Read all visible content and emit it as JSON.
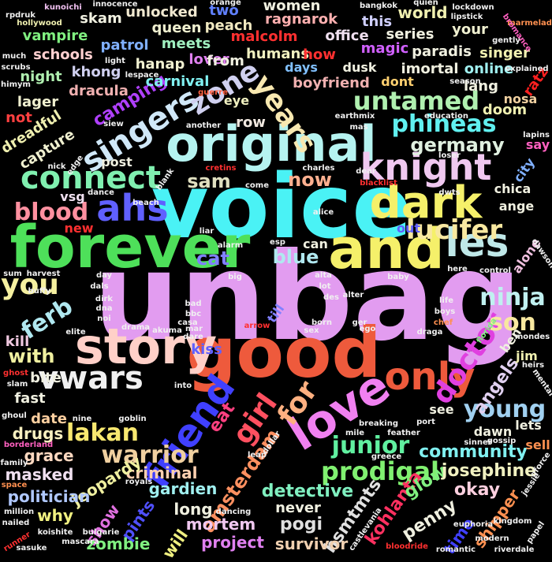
{
  "words": [
    {
      "t": "unbag",
      "c": "#e29cf0"
    },
    {
      "t": "voice",
      "c": "#4af2f5"
    },
    {
      "t": "good",
      "c": "#ee5a3c"
    },
    {
      "t": "forever",
      "c": "#4ee05a"
    },
    {
      "t": "original",
      "c": "#b5f3f0"
    },
    {
      "t": "and",
      "c": "#f5f06a"
    },
    {
      "t": "story",
      "c": "#ffd0c8"
    },
    {
      "t": "dark",
      "c": "#f5f06a"
    },
    {
      "t": "ahs",
      "c": "#6060ff"
    },
    {
      "t": "les",
      "c": "#bfe8e8"
    },
    {
      "t": "love",
      "c": "#f080f0"
    },
    {
      "t": "friend",
      "c": "#4040ff"
    },
    {
      "t": "only",
      "c": "#ee5a3c"
    },
    {
      "t": "years",
      "c": "#f8e8b0"
    },
    {
      "t": "singers",
      "c": "#d0e8f8"
    },
    {
      "t": "knight",
      "c": "#f0c8f0"
    },
    {
      "t": "connect",
      "c": "#80f0b0"
    },
    {
      "t": "untamed",
      "c": "#b0f0b0"
    },
    {
      "t": "phineas",
      "c": "#60f0f0"
    },
    {
      "t": "zone",
      "c": "#d0d0f0"
    },
    {
      "t": "you",
      "c": "#f5f0a0"
    },
    {
      "t": "vwars",
      "c": "#f0f0f0"
    },
    {
      "t": "lucifer",
      "c": "#f8e8a0"
    },
    {
      "t": "blood",
      "c": "#ff90a0"
    },
    {
      "t": "girl",
      "c": "#ff5060"
    },
    {
      "t": "for",
      "c": "#ffb080"
    },
    {
      "t": "doctor",
      "c": "#e040e0"
    },
    {
      "t": "ninja",
      "c": "#c0f0f0"
    },
    {
      "t": "warrior",
      "c": "#f0d0a0"
    },
    {
      "t": "lakan",
      "c": "#f8e870"
    },
    {
      "t": "junior",
      "c": "#60f0a0"
    },
    {
      "t": "prodigal",
      "c": "#80f070"
    },
    {
      "t": "young",
      "c": "#a0d0f0"
    },
    {
      "t": "son",
      "c": "#f8e8a0"
    },
    {
      "t": "ferb",
      "c": "#b0e8f0"
    },
    {
      "t": "germany",
      "c": "#e0f0e0"
    },
    {
      "t": "sam",
      "c": "#e0e0c0"
    },
    {
      "t": "now",
      "c": "#ffb090"
    },
    {
      "t": "blue",
      "c": "#b0e8f0"
    },
    {
      "t": "cat",
      "c": "#8080ff"
    },
    {
      "t": "with",
      "c": "#f0f0a0"
    },
    {
      "t": "amsterdam",
      "c": "#ff9060"
    },
    {
      "t": "eat",
      "c": "#ff4080"
    },
    {
      "t": "kohlanta",
      "c": "#ff3060"
    },
    {
      "t": "hsmtmts",
      "c": "#e0e0e0"
    },
    {
      "t": "angels",
      "c": "#e0d0f0"
    },
    {
      "t": "pogi",
      "c": "#e0e0e0"
    },
    {
      "t": "community",
      "c": "#80f0f0"
    },
    {
      "t": "detective",
      "c": "#80f0c0"
    },
    {
      "t": "glow",
      "c": "#80f080"
    },
    {
      "t": "josephine",
      "c": "#f0f0c0"
    },
    {
      "t": "okay",
      "c": "#ffd0e0"
    },
    {
      "t": "penny",
      "c": "#f0f0e0"
    },
    {
      "t": "criminal",
      "c": "#ffd0b0"
    },
    {
      "t": "jeopardy",
      "c": "#f0f0a0"
    },
    {
      "t": "gardien",
      "c": "#a0f0f0"
    },
    {
      "t": "masked",
      "c": "#f0e0f0"
    },
    {
      "t": "politician",
      "c": "#b0c8ff"
    },
    {
      "t": "grace",
      "c": "#ffd8c0"
    },
    {
      "t": "drugs",
      "c": "#f8f0c0"
    },
    {
      "t": "long",
      "c": "#f0f0e0"
    },
    {
      "t": "mortem",
      "c": "#f0c8f0"
    },
    {
      "t": "pints",
      "c": "#5050ff"
    },
    {
      "t": "show",
      "c": "#e070e0"
    },
    {
      "t": "zombie",
      "c": "#80f080"
    },
    {
      "t": "project",
      "c": "#e080f0"
    },
    {
      "t": "survivor",
      "c": "#f0d0b0"
    },
    {
      "t": "never",
      "c": "#f0f0e0"
    },
    {
      "t": "will",
      "c": "#f0f080"
    },
    {
      "t": "why",
      "c": "#f0f080"
    },
    {
      "t": "shipper",
      "c": "#ff9050"
    },
    {
      "t": "time",
      "c": "#4040ff"
    },
    {
      "t": "kiss",
      "c": "#6060ff"
    },
    {
      "t": "date",
      "c": "#ffd0a0"
    },
    {
      "t": "fast",
      "c": "#f0f0e0"
    },
    {
      "t": "bite",
      "c": "#f0f0e0"
    },
    {
      "t": "kill",
      "c": "#f0c8e0"
    },
    {
      "t": "row",
      "c": "#f0e8e0"
    },
    {
      "t": "camping",
      "c": "#b040ff"
    },
    {
      "t": "dracula",
      "c": "#f0b0b0"
    },
    {
      "t": "carnival",
      "c": "#80f0f0"
    },
    {
      "t": "hanap",
      "c": "#f0f0d0"
    },
    {
      "t": "khong",
      "c": "#d0d0f0"
    },
    {
      "t": "lager",
      "c": "#f0f0d0"
    },
    {
      "t": "night",
      "c": "#b0f0b0"
    },
    {
      "t": "capture",
      "c": "#f0f0d0"
    },
    {
      "t": "dreadful",
      "c": "#f0f0b0"
    },
    {
      "t": "not",
      "c": "#ff4040"
    },
    {
      "t": "schools",
      "c": "#ffd0d0"
    },
    {
      "t": "vampire",
      "c": "#80f080"
    },
    {
      "t": "skam",
      "c": "#f0f0e0"
    },
    {
      "t": "unlocked",
      "c": "#f0e8d0"
    },
    {
      "t": "queen",
      "c": "#f0f0d0"
    },
    {
      "t": "patrol",
      "c": "#80b0ff"
    },
    {
      "t": "meets",
      "c": "#a0f0c0"
    },
    {
      "t": "lover",
      "c": "#e080f0"
    },
    {
      "t": "from",
      "c": "#f0f0e0"
    },
    {
      "t": "two",
      "c": "#6080ff"
    },
    {
      "t": "peach",
      "c": "#f0e8c0"
    },
    {
      "t": "malcolm",
      "c": "#ff3030"
    },
    {
      "t": "humans",
      "c": "#f0f0c0"
    },
    {
      "t": "women",
      "c": "#f0f0e0"
    },
    {
      "t": "ragnarok",
      "c": "#ffb0b0"
    },
    {
      "t": "office",
      "c": "#f0e0f0"
    },
    {
      "t": "this",
      "c": "#d0d0ff"
    },
    {
      "t": "how",
      "c": "#ff3030"
    },
    {
      "t": "magic",
      "c": "#d060ff"
    },
    {
      "t": "days",
      "c": "#80c0ff"
    },
    {
      "t": "dusk",
      "c": "#f0f0e0"
    },
    {
      "t": "boyfriend",
      "c": "#f0b0b0"
    },
    {
      "t": "dont",
      "c": "#ffd070"
    },
    {
      "t": "imortal",
      "c": "#f0f0e0"
    },
    {
      "t": "world",
      "c": "#f0f0b0"
    },
    {
      "t": "series",
      "c": "#f0f0e0"
    },
    {
      "t": "paradis",
      "c": "#f0f0e0"
    },
    {
      "t": "your",
      "c": "#f0f0d0"
    },
    {
      "t": "singer",
      "c": "#f0f0b0"
    },
    {
      "t": "online",
      "c": "#a0f0f0"
    },
    {
      "t": "lang",
      "c": "#f0f0e0"
    },
    {
      "t": "doom",
      "c": "#f0f0b0"
    },
    {
      "t": "nosa",
      "c": "#f0d0a0"
    },
    {
      "t": "ratz",
      "c": "#ff2020"
    },
    {
      "t": "say",
      "c": "#ff60c0"
    },
    {
      "t": "eye",
      "c": "#f0f0c0"
    },
    {
      "t": "post",
      "c": "#f0f0e0"
    },
    {
      "t": "vsg",
      "c": "#f0e0f0"
    },
    {
      "t": "new",
      "c": "#ff3030"
    },
    {
      "t": "out",
      "c": "#6060ff"
    },
    {
      "t": "can",
      "c": "#f0f0e0"
    },
    {
      "t": "chica",
      "c": "#f0f0e0"
    },
    {
      "t": "ange",
      "c": "#f0f0e0"
    },
    {
      "t": "city",
      "c": "#80b0ff"
    },
    {
      "t": "alone",
      "c": "#f0c0e0"
    },
    {
      "t": "see",
      "c": "#f0f0e0"
    },
    {
      "t": "ben",
      "c": "#f0f0e0"
    },
    {
      "t": "jim",
      "c": "#f0f0b0"
    },
    {
      "t": "lets",
      "c": "#f0f0e0"
    },
    {
      "t": "dawn",
      "c": "#f0f0e0"
    },
    {
      "t": "sell",
      "c": "#ff9050"
    },
    {
      "t": "till",
      "c": "#8080ff"
    },
    {
      "t": "innocence",
      "c": "#f0f0f0"
    },
    {
      "t": "orange",
      "c": "#f0f0f0"
    },
    {
      "t": "kunoichi",
      "c": "#f0c0f0"
    },
    {
      "t": "rpdruk",
      "c": "#f0f0f0"
    },
    {
      "t": "hollywood",
      "c": "#f0f0b0"
    },
    {
      "t": "bangkok",
      "c": "#f0f0f0"
    },
    {
      "t": "quien",
      "c": "#f0f0f0"
    },
    {
      "t": "lockdown",
      "c": "#f0f0f0"
    },
    {
      "t": "lipstick",
      "c": "#f0f0f0"
    },
    {
      "t": "marmelade",
      "c": "#ff9050"
    },
    {
      "t": "bromance",
      "c": "#ff60c0"
    },
    {
      "t": "gently",
      "c": "#f0f0f0"
    },
    {
      "t": "explained",
      "c": "#f0f0f0"
    },
    {
      "t": "season",
      "c": "#f0f0f0"
    },
    {
      "t": "much",
      "c": "#f0f0f0"
    },
    {
      "t": "scrubs",
      "c": "#f0f0f0"
    },
    {
      "t": "himym",
      "c": "#f0f0f0"
    },
    {
      "t": "light",
      "c": "#f0f0f0"
    },
    {
      "t": "lespace",
      "c": "#f0f0f0"
    },
    {
      "t": "guerre",
      "c": "#ff6040"
    },
    {
      "t": "siew",
      "c": "#f0f0f0"
    },
    {
      "t": "another",
      "c": "#f0f0f0"
    },
    {
      "t": "earthmix",
      "c": "#f0f0f0"
    },
    {
      "t": "education",
      "c": "#f0f0f0"
    },
    {
      "t": "mas",
      "c": "#f0f0f0"
    },
    {
      "t": "lapins",
      "c": "#f0f0f0"
    },
    {
      "t": "nick",
      "c": "#f0f0f0"
    },
    {
      "t": "edge",
      "c": "#f0f0f0"
    },
    {
      "t": "cretins",
      "c": "#ff3030"
    },
    {
      "t": "charles",
      "c": "#f0f0f0"
    },
    {
      "t": "loser",
      "c": "#f0f0f0"
    },
    {
      "t": "dear",
      "c": "#f0f0f0"
    },
    {
      "t": "blacklist",
      "c": "#ff3030"
    },
    {
      "t": "dwts",
      "c": "#f0f0f0"
    },
    {
      "t": "blank",
      "c": "#f0f0f0"
    },
    {
      "t": "dance",
      "c": "#f0f0f0"
    },
    {
      "t": "come",
      "c": "#f0f0f0"
    },
    {
      "t": "beach",
      "c": "#f0f0f0"
    },
    {
      "t": "alice",
      "c": "#f0f0f0"
    },
    {
      "t": "liar",
      "c": "#f0f0f0"
    },
    {
      "t": "esp",
      "c": "#f0f0f0"
    },
    {
      "t": "alarm",
      "c": "#f0f0f0"
    },
    {
      "t": "sum",
      "c": "#f0f0f0"
    },
    {
      "t": "harvest",
      "c": "#f0f0f0"
    },
    {
      "t": "dals",
      "c": "#f0f0f0"
    },
    {
      "t": "day",
      "c": "#f0f0f0"
    },
    {
      "t": "big",
      "c": "#f0f0f0"
    },
    {
      "t": "alta",
      "c": "#f0f0f0"
    },
    {
      "t": "lot",
      "c": "#f0f0f0"
    },
    {
      "t": "baby",
      "c": "#f0f0f0"
    },
    {
      "t": "here",
      "c": "#f0f0f0"
    },
    {
      "t": "control",
      "c": "#f0f0f0"
    },
    {
      "t": "dawson",
      "c": "#f0f0f0"
    },
    {
      "t": "des",
      "c": "#f0f0f0"
    },
    {
      "t": "alter",
      "c": "#f0f0f0"
    },
    {
      "t": "life",
      "c": "#f0f0f0"
    },
    {
      "t": "boys",
      "c": "#f0f0f0"
    },
    {
      "t": "chef",
      "c": "#ff9050"
    },
    {
      "t": "buffy",
      "c": "#f0f0f0"
    },
    {
      "t": "dirk",
      "c": "#f0f0f0"
    },
    {
      "t": "dna",
      "c": "#f0f0f0"
    },
    {
      "t": "noi",
      "c": "#f0f0f0"
    },
    {
      "t": "bad",
      "c": "#f0f0f0"
    },
    {
      "t": "bbc",
      "c": "#f0f0f0"
    },
    {
      "t": "casa",
      "c": "#f0f0f0"
    },
    {
      "t": "mar",
      "c": "#f0f0f0"
    },
    {
      "t": "dare",
      "c": "#f0f0f0"
    },
    {
      "t": "ger",
      "c": "#f0f0f0"
    },
    {
      "t": "elite",
      "c": "#f0f0f0"
    },
    {
      "t": "drama",
      "c": "#f0f0f0"
    },
    {
      "t": "akuma",
      "c": "#f0f0f0"
    },
    {
      "t": "arrow",
      "c": "#ff3030"
    },
    {
      "t": "born",
      "c": "#f0f0f0"
    },
    {
      "t": "sex",
      "c": "#f0f0f0"
    },
    {
      "t": "ego",
      "c": "#f0f0f0"
    },
    {
      "t": "draga",
      "c": "#f0f0f0"
    },
    {
      "t": "mondes",
      "c": "#f0f0f0"
    },
    {
      "t": "heirs",
      "c": "#f0f0f0"
    },
    {
      "t": "mental",
      "c": "#f0f0f0"
    },
    {
      "t": "florida",
      "c": "#80f080"
    },
    {
      "t": "ghost",
      "c": "#ff3030"
    },
    {
      "t": "slam",
      "c": "#f0f0f0"
    },
    {
      "t": "into",
      "c": "#f0f0f0"
    },
    {
      "t": "ghoul",
      "c": "#f0f0f0"
    },
    {
      "t": "nine",
      "c": "#f0f0f0"
    },
    {
      "t": "goblin",
      "c": "#f0f0f0"
    },
    {
      "t": "borderland",
      "c": "#ff60c0"
    },
    {
      "t": "family",
      "c": "#f0f0f0"
    },
    {
      "t": "space",
      "c": "#ff9050"
    },
    {
      "t": "royals",
      "c": "#f0f0f0"
    },
    {
      "t": "leap",
      "c": "#f0f0f0"
    },
    {
      "t": "dollar",
      "c": "#f0f0f0"
    },
    {
      "t": "mile",
      "c": "#f0f0f0"
    },
    {
      "t": "breaking",
      "c": "#f0f0f0"
    },
    {
      "t": "feather",
      "c": "#f0f0f0"
    },
    {
      "t": "port",
      "c": "#f0f0f0"
    },
    {
      "t": "gossip",
      "c": "#f0f0f0"
    },
    {
      "t": "sinner",
      "c": "#f0f0f0"
    },
    {
      "t": "greece",
      "c": "#f0f0f0"
    },
    {
      "t": "qforce",
      "c": "#f0f0f0"
    },
    {
      "t": "jessie",
      "c": "#f0f0f0"
    },
    {
      "t": "million",
      "c": "#f0f0f0"
    },
    {
      "t": "nailed",
      "c": "#f0f0f0"
    },
    {
      "t": "dancing",
      "c": "#f0f0f0"
    },
    {
      "t": "castlevania",
      "c": "#f0f0f0"
    },
    {
      "t": "kingdom",
      "c": "#f0f0f0"
    },
    {
      "t": "euphoria",
      "c": "#f0f0f0"
    },
    {
      "t": "modern",
      "c": "#f0f0f0"
    },
    {
      "t": "papel",
      "c": "#f0f0f0"
    },
    {
      "t": "runner",
      "c": "#ff3030"
    },
    {
      "t": "koishite",
      "c": "#f0f0f0"
    },
    {
      "t": "bulgarie",
      "c": "#f0f0f0"
    },
    {
      "t": "sasuke",
      "c": "#f0f0f0"
    },
    {
      "t": "mascara",
      "c": "#f0f0f0"
    },
    {
      "t": "bloodride",
      "c": "#ff3030"
    },
    {
      "t": "romantic",
      "c": "#f0f0f0"
    },
    {
      "t": "riverdale",
      "c": "#f0f0f0"
    }
  ]
}
